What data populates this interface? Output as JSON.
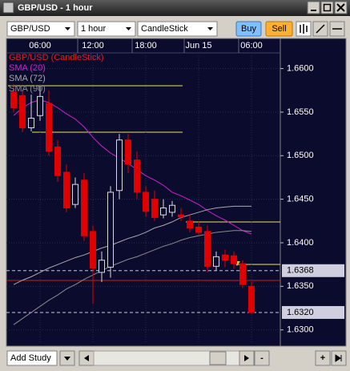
{
  "window": {
    "title": "GBP/USD - 1 hour"
  },
  "toolbar": {
    "symbol": "GBP/USD",
    "period": "1 hour",
    "chart_type": "CandleStick",
    "buy": "Buy",
    "sell": "Sell"
  },
  "chart_data": {
    "type": "candlestick",
    "name": "GBP/USD (CandleStick)",
    "name_color": "#e02020",
    "categories": [
      null,
      null,
      null,
      "06:00",
      null,
      null,
      null,
      null,
      null,
      "12:00",
      null,
      null,
      null,
      null,
      null,
      "18:00",
      null,
      null,
      null,
      null,
      null,
      "Jun 15",
      null,
      null,
      null,
      null,
      null,
      "06:00"
    ],
    "open": [
      1.6573,
      1.6569,
      1.6532,
      1.6546,
      1.656,
      1.651,
      1.6481,
      1.6444,
      1.6472,
      1.6413,
      1.6366,
      1.6372,
      1.646,
      1.6518,
      1.6495,
      1.6458,
      1.645,
      1.6432,
      1.6435,
      1.6432,
      1.6425,
      1.6418,
      1.6413,
      1.6373,
      1.6386,
      1.6385,
      1.6376,
      1.635
    ],
    "high": [
      1.6582,
      1.6575,
      1.657,
      1.658,
      1.6575,
      1.6518,
      1.649,
      1.6475,
      1.648,
      1.642,
      1.639,
      1.6465,
      1.6525,
      1.6525,
      1.6505,
      1.6465,
      1.646,
      1.645,
      1.6448,
      1.644,
      1.6432,
      1.6425,
      1.642,
      1.639,
      1.6392,
      1.639,
      1.638,
      1.6355
    ],
    "low": [
      1.655,
      1.6527,
      1.6528,
      1.654,
      1.65,
      1.647,
      1.6435,
      1.644,
      1.6402,
      1.633,
      1.6355,
      1.636,
      1.645,
      1.648,
      1.645,
      1.643,
      1.6425,
      1.6428,
      1.643,
      1.6425,
      1.6412,
      1.6408,
      1.6366,
      1.6368,
      1.6372,
      1.637,
      1.6348,
      1.6318
    ],
    "close": [
      1.6555,
      1.6532,
      1.6543,
      1.6568,
      1.6505,
      1.6477,
      1.644,
      1.6467,
      1.6408,
      1.6371,
      1.638,
      1.6458,
      1.6518,
      1.649,
      1.6458,
      1.6436,
      1.6429,
      1.644,
      1.6443,
      1.643,
      1.6417,
      1.6412,
      1.6373,
      1.6384,
      1.638,
      1.6376,
      1.6352,
      1.632
    ],
    "up_color": "#d8d8d8",
    "down_color": "#e00000",
    "series": [
      {
        "name": "SMA (20)",
        "color": "#d020d0",
        "values": [
          1.6546,
          1.6555,
          1.6561,
          1.6564,
          1.6561,
          1.6555,
          1.6548,
          1.6542,
          1.6533,
          1.6521,
          1.6511,
          1.6503,
          1.6497,
          1.6491,
          1.6484,
          1.6477,
          1.6472,
          1.6466,
          1.6458,
          1.6454,
          1.6449,
          1.6444,
          1.6437,
          1.6431,
          1.6426,
          1.642,
          1.6414,
          1.641
        ]
      },
      {
        "name": "SMA (72)",
        "color": "#a8a8a8",
        "values": [
          1.6352,
          1.6357,
          1.6361,
          1.6366,
          1.6371,
          1.6375,
          1.6379,
          1.6383,
          1.6386,
          1.639,
          1.6394,
          1.6397,
          1.6401,
          1.6405,
          1.6408,
          1.6412,
          1.6417,
          1.642,
          1.6424,
          1.6429,
          1.6432,
          1.6435,
          1.6438,
          1.644,
          1.6441,
          1.6442,
          1.6442,
          1.6442
        ]
      },
      {
        "name": "SMA (90)",
        "color": "#8a8a8a",
        "values": [
          1.6306,
          1.6313,
          1.632,
          1.6327,
          1.6334,
          1.634,
          1.6347,
          1.6352,
          1.6358,
          1.6363,
          1.6368,
          1.6373,
          1.6377,
          1.6381,
          1.6384,
          1.6388,
          1.6392,
          1.6396,
          1.6399,
          1.6403,
          1.6406,
          1.6408,
          1.641,
          1.6412,
          1.6413,
          1.6414,
          1.6414,
          1.6413
        ]
      }
    ],
    "ylim": [
      1.6285,
      1.6618
    ],
    "yticks": [
      {
        "value": 1.66,
        "label": "1.6600"
      },
      {
        "value": 1.655,
        "label": "1.6550"
      },
      {
        "value": 1.65,
        "label": "1.6500"
      },
      {
        "value": 1.645,
        "label": "1.6450"
      },
      {
        "value": 1.64,
        "label": "1.6400"
      },
      {
        "value": 1.635,
        "label": "1.6350"
      },
      {
        "value": 1.63,
        "label": "1.6300"
      }
    ],
    "price_labels": [
      1.6368,
      {
        "value": 1.632,
        "label": "1.6320"
      }
    ]
  },
  "footer": {
    "add_study": "Add Study",
    "zoom_out": "-",
    "zoom_in": "+"
  }
}
